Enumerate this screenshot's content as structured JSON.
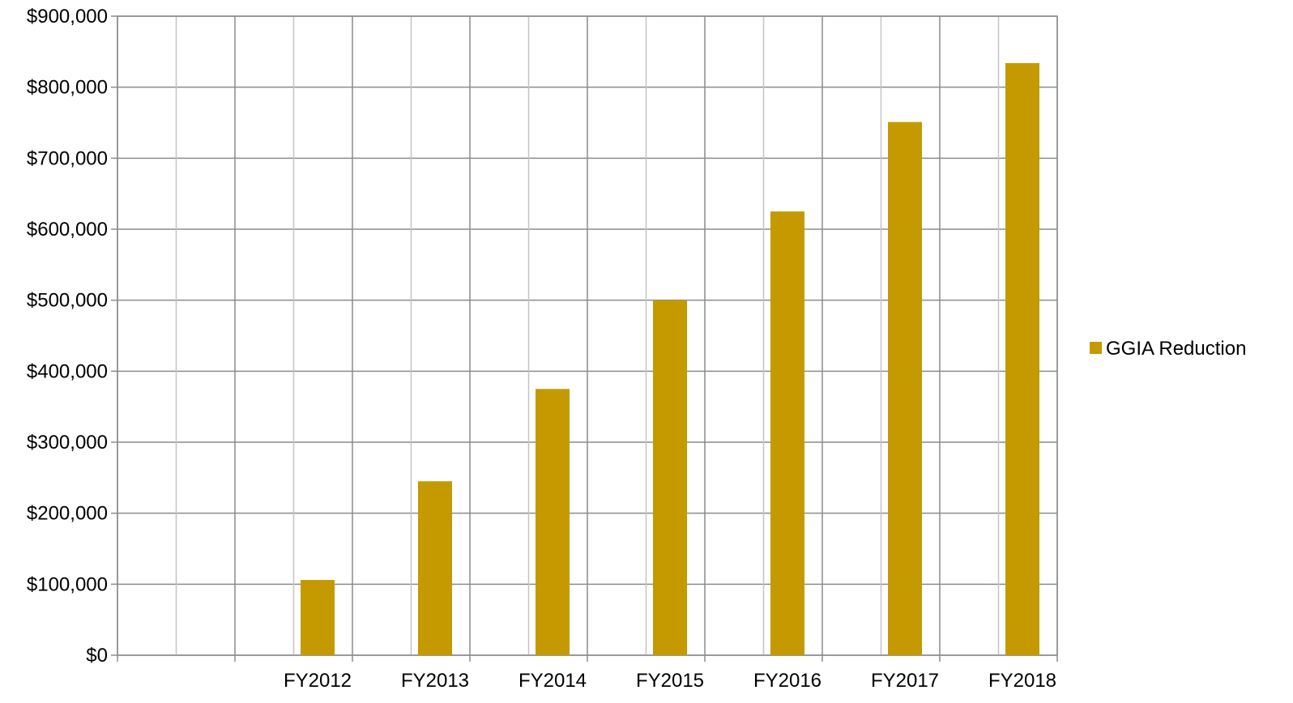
{
  "chart_data": {
    "type": "bar",
    "title": "",
    "xlabel": "",
    "ylabel": "",
    "categories": [
      "",
      "FY2012",
      "FY2013",
      "FY2014",
      "FY2015",
      "FY2016",
      "FY2017",
      "FY2018"
    ],
    "series": [
      {
        "name": "GGIA Reduction",
        "color": "#C49A00",
        "values": [
          0,
          106000,
          245000,
          375000,
          500000,
          625000,
          751000,
          834000
        ]
      }
    ],
    "ylim": [
      0,
      900000
    ],
    "yticks": [
      0,
      100000,
      200000,
      300000,
      400000,
      500000,
      600000,
      700000,
      800000,
      900000
    ],
    "ytick_labels": [
      "$0",
      "$100,000",
      "$200,000",
      "$300,000",
      "$400,000",
      "$500,000",
      "$600,000",
      "$700,000",
      "$800,000",
      "$900,000"
    ],
    "grid": {
      "horizontal": true,
      "vertical": true
    },
    "legend": {
      "position": "right",
      "entries": [
        "GGIA Reduction"
      ]
    }
  }
}
